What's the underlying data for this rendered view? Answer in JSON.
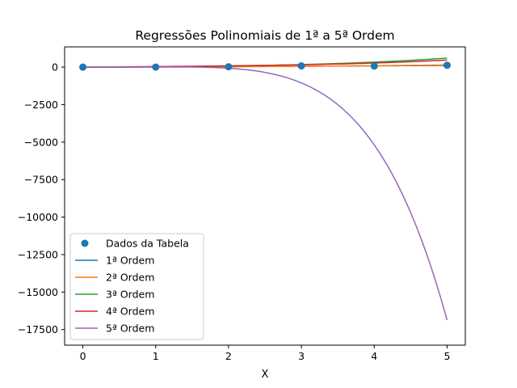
{
  "chart_data": {
    "type": "line",
    "title": "Regressões Polinomiais de 1ª a 5ª Ordem",
    "xlabel": "X",
    "ylabel": "",
    "xlim": [
      -0.25,
      5.25
    ],
    "ylim": [
      -18540,
      1350
    ],
    "x_ticks": [
      0,
      1,
      2,
      3,
      4,
      5
    ],
    "y_ticks": [
      0,
      -2500,
      -5000,
      -7500,
      -10000,
      -12500,
      -15000,
      -17500
    ],
    "y_tick_labels": [
      "0",
      "−2500",
      "−5000",
      "−7500",
      "−10000",
      "−12500",
      "−15000",
      "−17500"
    ],
    "grid": false,
    "legend_position": "lower-left",
    "scatter": {
      "name": "Dados da Tabela",
      "color": "#1f77b4",
      "x": [
        0,
        1,
        2,
        3,
        4,
        5
      ],
      "y": [
        0,
        5,
        25,
        80,
        75,
        125
      ]
    },
    "series": [
      {
        "name": "1ª Ordem",
        "color": "#1f77b4",
        "coefficients": [
          -15,
          25
        ],
        "x_range": [
          0,
          5
        ]
      },
      {
        "name": "2ª Ordem",
        "color": "#ff7f0e",
        "coefficients": [
          -5,
          5,
          5
        ],
        "x_range": [
          0,
          5
        ]
      },
      {
        "name": "3ª Ordem",
        "color": "#2ca02c",
        "coefficients": [
          0,
          20,
          0,
          4
        ],
        "x_range": [
          0,
          5
        ]
      },
      {
        "name": "4ª Ordem",
        "color": "#d62728",
        "coefficients": [
          0,
          30,
          8,
          -2,
          0.6
        ],
        "x_range": [
          0,
          5
        ]
      },
      {
        "name": "5ª Ordem",
        "color": "#9467bd",
        "coefficients": [
          0,
          0,
          0,
          15,
          0,
          -6.0
        ],
        "x_range": [
          0,
          5
        ]
      }
    ]
  }
}
